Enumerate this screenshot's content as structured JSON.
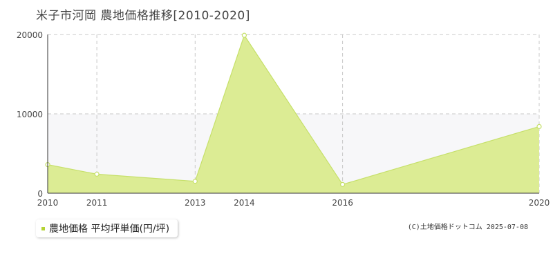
{
  "title": "米子市河岡  農地価格推移[2010-2020]",
  "legend": {
    "label": "農地価格 平均坪単価(円/坪)",
    "color": "#b5d334"
  },
  "copyright": "(C)土地価格ドットコム 2025-07-08",
  "colors": {
    "fill": "#dcec94",
    "line": "#c6e06a",
    "band": "#f7f7f9",
    "grid": "#c8c8c8"
  },
  "chart_data": {
    "type": "area",
    "x": [
      "2010",
      "2011",
      "2013",
      "2014",
      "2016",
      "2020"
    ],
    "x_numeric": [
      2010,
      2011,
      2013,
      2014,
      2016,
      2020
    ],
    "values": [
      3600,
      2400,
      1500,
      19900,
      1100,
      8400
    ],
    "yticks": [
      "0",
      "10000",
      "20000"
    ],
    "ylim": [
      0,
      20000
    ],
    "xlim": [
      2010,
      2020
    ],
    "grid": true
  }
}
